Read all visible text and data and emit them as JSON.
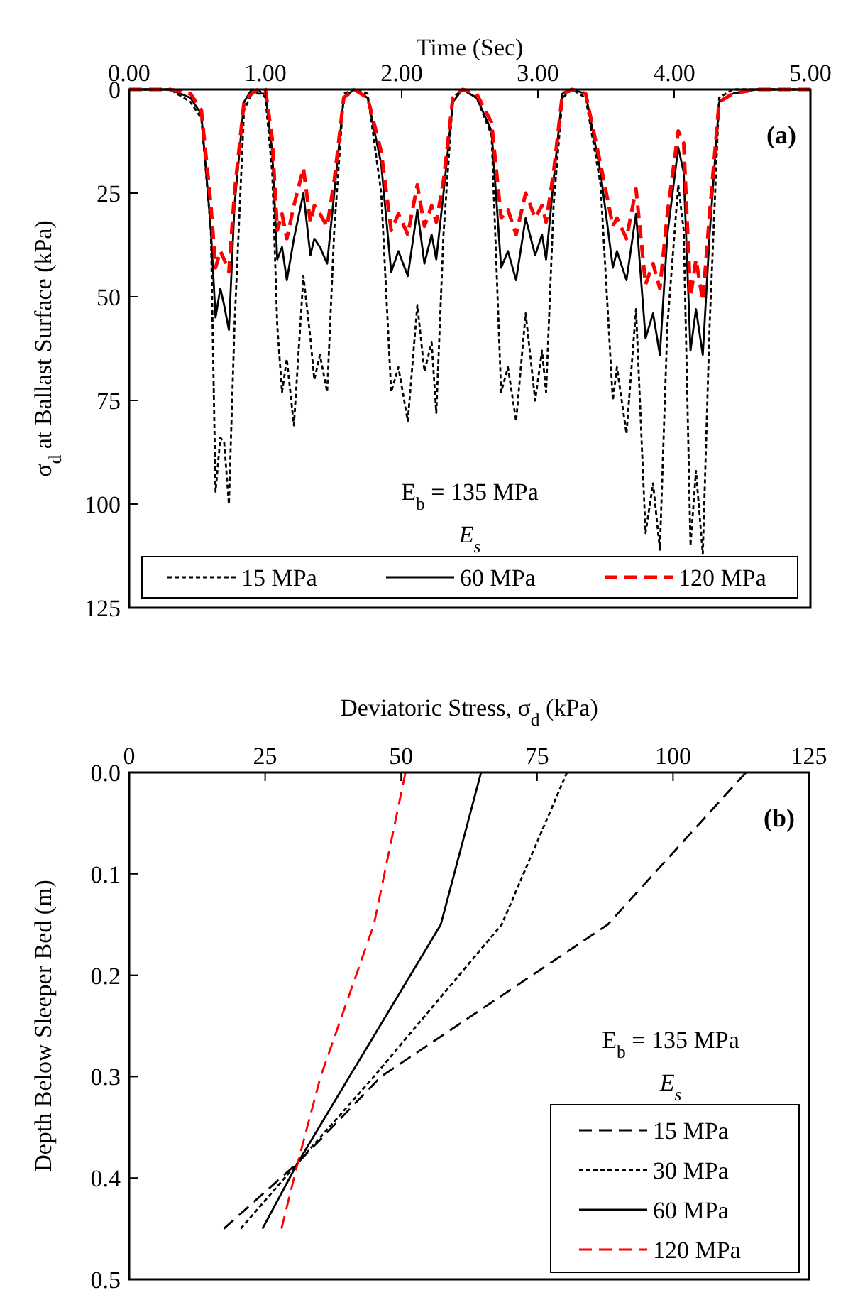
{
  "chart_data": [
    {
      "type": "line",
      "xlabel": "Time (Sec)",
      "ylabel": "σ$_{d}$ at Ballast Surface (kPa)",
      "x": [
        0,
        0.3,
        0.45,
        0.53,
        0.6,
        0.634,
        0.669,
        0.697,
        0.732,
        0.773,
        0.843,
        0.9,
        0.948,
        1.0,
        1.05,
        1.087,
        1.122,
        1.157,
        1.209,
        1.279,
        1.33,
        1.359,
        1.4,
        1.453,
        1.505,
        1.575,
        1.65,
        1.75,
        1.85,
        1.923,
        1.976,
        2.045,
        2.115,
        2.167,
        2.22,
        2.254,
        2.307,
        2.376,
        2.446,
        2.55,
        2.66,
        2.73,
        2.78,
        2.84,
        2.91,
        2.98,
        3.03,
        3.06,
        3.115,
        3.18,
        3.25,
        3.35,
        3.46,
        3.55,
        3.58,
        3.65,
        3.72,
        3.79,
        3.845,
        3.895,
        3.95,
        4.03,
        4.07,
        4.12,
        4.16,
        4.21,
        4.26,
        4.33,
        4.43,
        4.6,
        5.0
      ],
      "series": [
        {
          "name": "15 MPa",
          "color": "#000000",
          "line_style": "dotted",
          "values": [
            0,
            0,
            3,
            7,
            34,
            97,
            84,
            85,
            100,
            57,
            5,
            1,
            0,
            2,
            20,
            57,
            73,
            65,
            81,
            45,
            60,
            70,
            64,
            73,
            34,
            1,
            0,
            1,
            25,
            73,
            67,
            80,
            52,
            68,
            61,
            78,
            35,
            2,
            0,
            2,
            11,
            73,
            67,
            80,
            54,
            75,
            63,
            73,
            28,
            2,
            0,
            2,
            23,
            75,
            67,
            83,
            53,
            107,
            95,
            111,
            57,
            23,
            34,
            110,
            92,
            112,
            57,
            2,
            0,
            0,
            0
          ]
        },
        {
          "name": "60 MPa",
          "color": "#000000",
          "line_style": "solid",
          "values": [
            0,
            0,
            2,
            6,
            34,
            55,
            48,
            52,
            58,
            28,
            3,
            0,
            1,
            1,
            15,
            41,
            38,
            46,
            36,
            25,
            40,
            36,
            38,
            42,
            25,
            2,
            0,
            2,
            18,
            44,
            39,
            45,
            29,
            42,
            35,
            41,
            25,
            3,
            0,
            2,
            10,
            43,
            39,
            46,
            31,
            40,
            35,
            41,
            22,
            1,
            0,
            1,
            20,
            43,
            39,
            46,
            30,
            60,
            54,
            64,
            35,
            14,
            20,
            63,
            53,
            64,
            35,
            3,
            1,
            0,
            0
          ]
        },
        {
          "name": "120 MPa",
          "color": "#ff0000",
          "line_style": "dashed",
          "values": [
            0,
            0,
            1,
            5,
            28,
            43,
            39,
            41,
            44,
            25,
            3,
            1,
            0,
            0,
            12,
            34,
            30,
            36,
            28,
            19,
            32,
            28,
            30,
            33,
            22,
            2,
            0,
            2,
            15,
            34,
            30,
            35,
            23,
            33,
            28,
            32,
            22,
            2,
            0,
            1,
            8,
            31,
            29,
            35,
            25,
            31,
            28,
            32,
            20,
            1,
            0,
            1,
            18,
            33,
            31,
            36,
            24,
            47,
            42,
            48,
            30,
            10,
            13,
            50,
            41,
            51,
            30,
            3,
            1,
            0,
            0
          ]
        }
      ],
      "xlim": [
        0,
        5
      ],
      "xticks": [
        {
          "value": 0,
          "label": "0.00"
        },
        {
          "value": 1,
          "label": "1.00"
        },
        {
          "value": 2,
          "label": "2.00"
        },
        {
          "value": 3,
          "label": "3.00"
        },
        {
          "value": 4,
          "label": "4.00"
        },
        {
          "value": 5,
          "label": "5.00"
        }
      ],
      "ylim": [
        125,
        0
      ],
      "yticks": [
        0,
        25,
        50,
        75,
        100,
        125
      ],
      "legend": "bottom",
      "legend_title": "E$_{s}$",
      "annotations": [
        "(a)",
        "E$_{b}$ = 135 MPa"
      ],
      "grid": false
    },
    {
      "type": "line",
      "xlabel": "Deviatoric Stress, σ$_{d}$ (kPa)",
      "ylabel": "Depth Below Sleeper Bed (m)",
      "series": [
        {
          "name": "15 MPa",
          "color": "#000000",
          "line_style": "dashed",
          "x": [
            113.4,
            88,
            46.3,
            31,
            17.4
          ],
          "values": [
            0,
            0.15,
            0.3,
            0.385,
            0.45
          ]
        },
        {
          "name": "30 MPa",
          "color": "#000000",
          "line_style": "dotted",
          "x": [
            80.5,
            68.5,
            45,
            31,
            20.5
          ],
          "values": [
            0,
            0.15,
            0.3,
            0.385,
            0.45
          ]
        },
        {
          "name": "60 MPa",
          "color": "#000000",
          "line_style": "solid",
          "x": [
            64.7,
            57.3,
            40.5,
            31,
            24.5
          ],
          "values": [
            0,
            0.15,
            0.3,
            0.385,
            0.45
          ]
        },
        {
          "name": "120 MPa",
          "color": "#ff0000",
          "line_style": "dashed",
          "x": [
            50.8,
            45,
            35.2,
            31,
            28
          ],
          "values": [
            0,
            0.15,
            0.3,
            0.385,
            0.45
          ]
        }
      ],
      "xlim": [
        0,
        125
      ],
      "xticks": [
        0,
        25,
        50,
        75,
        100,
        125
      ],
      "ylim": [
        0.5,
        0
      ],
      "yticks": [
        {
          "value": 0,
          "label": "0.0"
        },
        {
          "value": 0.1,
          "label": "0.1"
        },
        {
          "value": 0.2,
          "label": "0.2"
        },
        {
          "value": 0.3,
          "label": "0.3"
        },
        {
          "value": 0.4,
          "label": "0.4"
        },
        {
          "value": 0.5,
          "label": "0.5"
        }
      ],
      "legend": "bottom right",
      "legend_title": "E$_{s}$",
      "annotations": [
        "(b)",
        "E$_{b}$ = 135 MPa"
      ],
      "grid": false
    }
  ]
}
